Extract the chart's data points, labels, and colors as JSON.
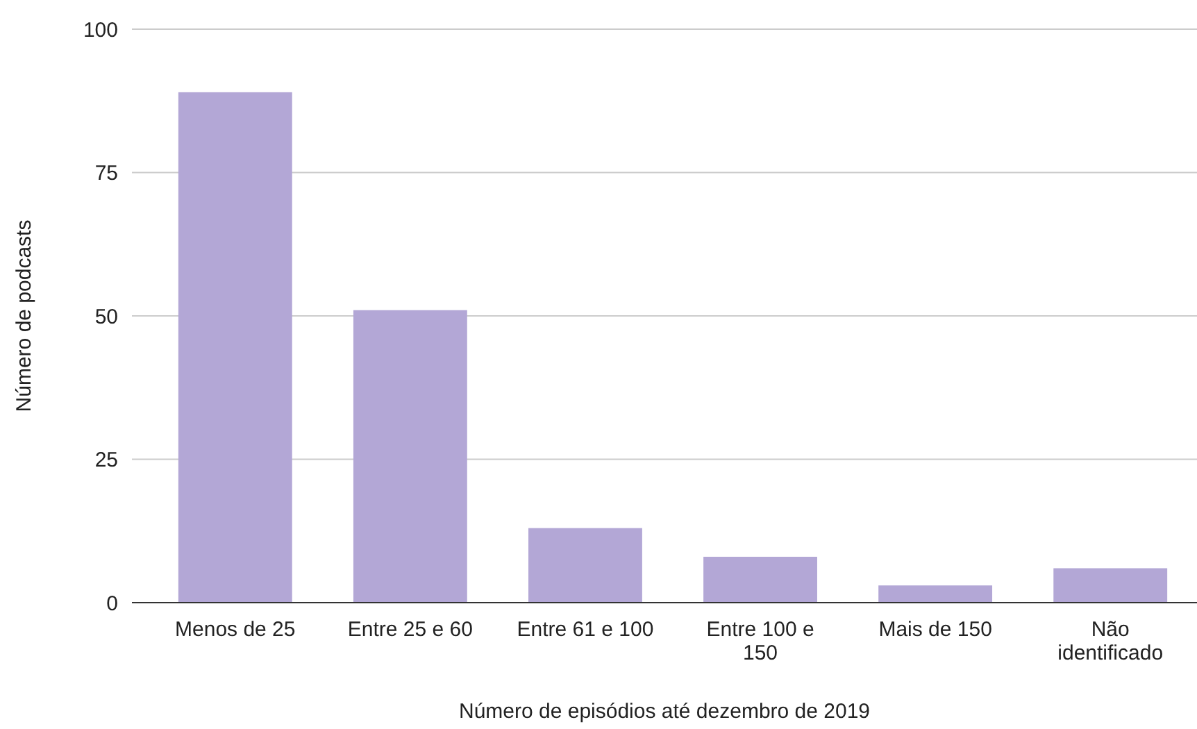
{
  "chart_data": {
    "type": "bar",
    "xlabel": "Número de episódios até dezembro de 2019",
    "ylabel": "Número de podcasts",
    "categories": [
      "Menos de 25",
      "Entre 25 e 60",
      "Entre 61 e 100",
      "Entre 100 e 150",
      "Mais de 150",
      "Não identificado"
    ],
    "values": [
      89,
      51,
      13,
      8,
      3,
      6
    ],
    "color": "#b3a7d6",
    "ylim": [
      0,
      100
    ],
    "yticks": [
      0,
      25,
      50,
      75,
      100
    ],
    "grid": "y"
  }
}
